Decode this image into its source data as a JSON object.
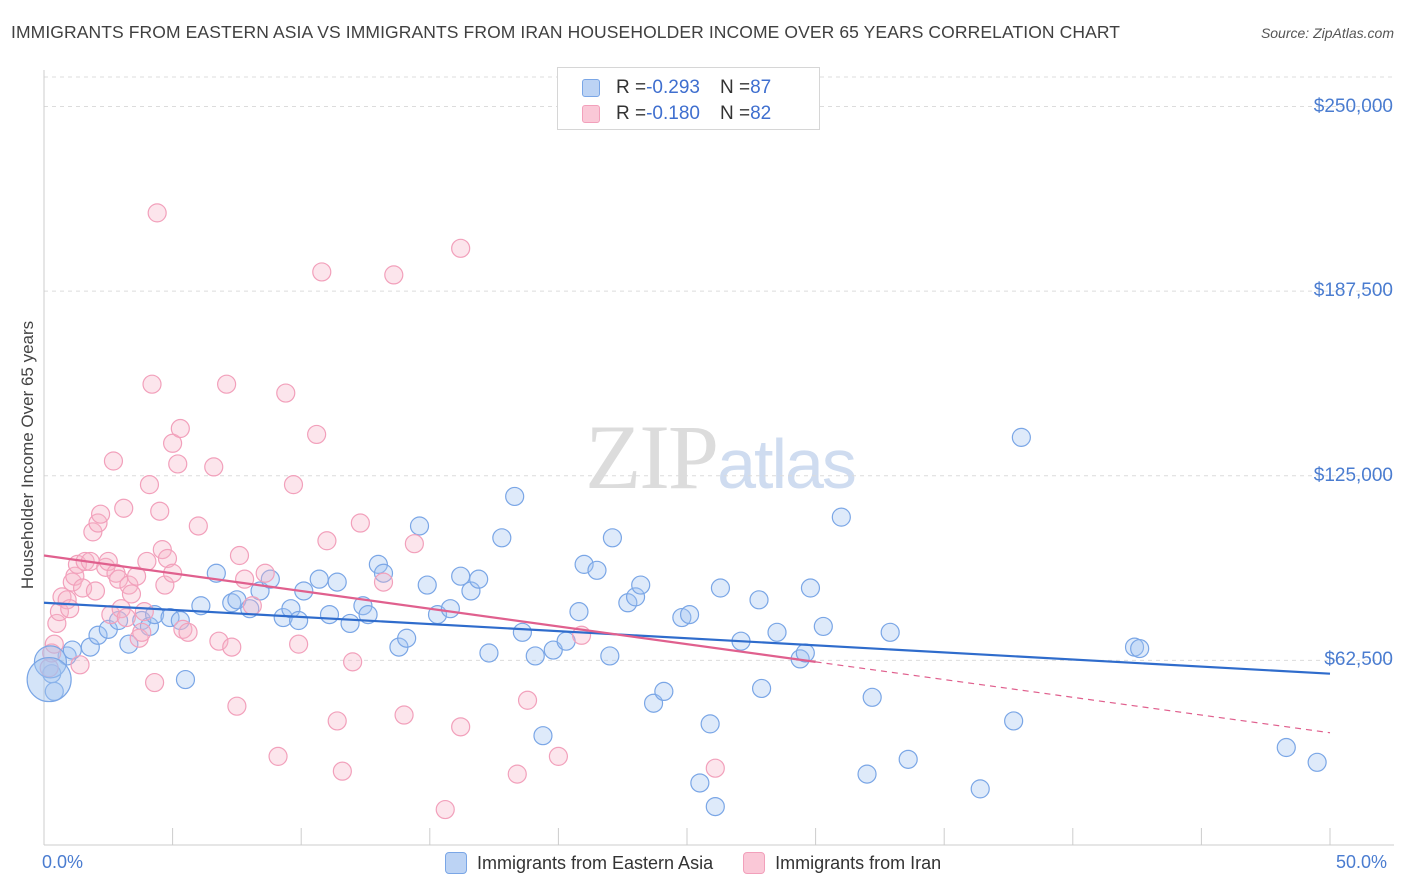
{
  "chart_data": {
    "type": "scatter",
    "title": "IMMIGRANTS FROM EASTERN ASIA VS IMMIGRANTS FROM IRAN HOUSEHOLDER INCOME OVER 65 YEARS CORRELATION CHART",
    "source": "Source: ZipAtlas.com",
    "xlabel": "",
    "ylabel": "Householder Income Over 65 years",
    "xlim": [
      0,
      50
    ],
    "ylim": [
      0,
      250000
    ],
    "x_tick_labels": [
      "0.0%",
      "50.0%"
    ],
    "y_ticks": [
      62500,
      125000,
      187500,
      250000
    ],
    "y_tick_labels": [
      "$62,500",
      "$125,000",
      "$187,500",
      "$250,000"
    ],
    "grid": "horizontal dashed",
    "watermark": "ZIPatlas",
    "legend_position": "top-center",
    "series": [
      {
        "name": "Immigrants from Eastern Asia",
        "color": "#7aa6e6",
        "line_color": "#2f6ccc",
        "R": "-0.293",
        "N": "87",
        "trend": {
          "x": [
            0,
            50
          ],
          "y": [
            82000,
            58000
          ],
          "solid_until": 50
        },
        "points": [
          [
            0.3,
            58000
          ],
          [
            0.4,
            52000
          ],
          [
            0.9,
            64000
          ],
          [
            1.1,
            66000
          ],
          [
            1.8,
            67000
          ],
          [
            2.1,
            71000
          ],
          [
            2.5,
            73000
          ],
          [
            2.9,
            76000
          ],
          [
            3.3,
            68000
          ],
          [
            3.8,
            76000
          ],
          [
            4.1,
            74000
          ],
          [
            4.3,
            78000
          ],
          [
            4.9,
            77000
          ],
          [
            5.3,
            76000
          ],
          [
            5.5,
            56000
          ],
          [
            6.1,
            81000
          ],
          [
            6.7,
            92000
          ],
          [
            7.3,
            82000
          ],
          [
            7.5,
            83000
          ],
          [
            8.0,
            80000
          ],
          [
            8.4,
            86000
          ],
          [
            8.8,
            90000
          ],
          [
            9.3,
            77000
          ],
          [
            9.6,
            80000
          ],
          [
            9.9,
            76000
          ],
          [
            10.1,
            86000
          ],
          [
            10.7,
            90000
          ],
          [
            11.1,
            78000
          ],
          [
            11.4,
            89000
          ],
          [
            11.9,
            75000
          ],
          [
            12.4,
            81000
          ],
          [
            12.6,
            78000
          ],
          [
            13.0,
            95000
          ],
          [
            13.2,
            92000
          ],
          [
            13.8,
            67000
          ],
          [
            14.1,
            70000
          ],
          [
            14.6,
            108000
          ],
          [
            14.9,
            88000
          ],
          [
            15.3,
            78000
          ],
          [
            15.8,
            80000
          ],
          [
            16.2,
            91000
          ],
          [
            16.6,
            86000
          ],
          [
            16.9,
            90000
          ],
          [
            17.3,
            65000
          ],
          [
            17.8,
            104000
          ],
          [
            18.3,
            118000
          ],
          [
            18.6,
            72000
          ],
          [
            19.1,
            64000
          ],
          [
            19.4,
            37000
          ],
          [
            19.8,
            66000
          ],
          [
            20.3,
            69000
          ],
          [
            20.8,
            79000
          ],
          [
            21.0,
            95000
          ],
          [
            21.5,
            93000
          ],
          [
            22.0,
            64000
          ],
          [
            22.1,
            104000
          ],
          [
            22.7,
            82000
          ],
          [
            23.0,
            84000
          ],
          [
            23.2,
            88000
          ],
          [
            23.7,
            48000
          ],
          [
            24.1,
            52000
          ],
          [
            24.8,
            77000
          ],
          [
            25.1,
            78000
          ],
          [
            25.5,
            21000
          ],
          [
            25.9,
            41000
          ],
          [
            26.1,
            13000
          ],
          [
            26.3,
            87000
          ],
          [
            27.1,
            69000
          ],
          [
            27.8,
            83000
          ],
          [
            27.9,
            53000
          ],
          [
            28.5,
            72000
          ],
          [
            29.4,
            63000
          ],
          [
            29.6,
            65000
          ],
          [
            29.8,
            87000
          ],
          [
            30.3,
            74000
          ],
          [
            31.0,
            111000
          ],
          [
            32.0,
            24000
          ],
          [
            32.2,
            50000
          ],
          [
            32.9,
            72000
          ],
          [
            33.6,
            29000
          ],
          [
            36.4,
            19000
          ],
          [
            37.7,
            42000
          ],
          [
            38.0,
            138000
          ],
          [
            42.4,
            67000
          ],
          [
            48.3,
            33000
          ],
          [
            49.5,
            28000
          ],
          [
            42.6,
            66500
          ]
        ],
        "point_sizes_note": "large bubbles at x≈0.2-0.3"
      },
      {
        "name": "Immigrants from Iran",
        "color": "#f2a0bb",
        "line_color": "#e0608e",
        "R": "-0.180",
        "N": "82",
        "trend": {
          "x": [
            0,
            50
          ],
          "y": [
            98000,
            38000
          ],
          "solid_until": 30
        },
        "points": [
          [
            0.2,
            60000
          ],
          [
            0.3,
            65000
          ],
          [
            0.4,
            68000
          ],
          [
            0.5,
            75000
          ],
          [
            0.6,
            79000
          ],
          [
            0.7,
            84000
          ],
          [
            0.9,
            83000
          ],
          [
            1.0,
            80000
          ],
          [
            1.1,
            89000
          ],
          [
            1.2,
            91000
          ],
          [
            1.3,
            95000
          ],
          [
            1.4,
            61000
          ],
          [
            1.5,
            87000
          ],
          [
            1.6,
            96000
          ],
          [
            1.8,
            96000
          ],
          [
            1.9,
            106000
          ],
          [
            2.0,
            86000
          ],
          [
            2.1,
            109000
          ],
          [
            2.2,
            112000
          ],
          [
            2.4,
            94000
          ],
          [
            2.5,
            96000
          ],
          [
            2.6,
            78000
          ],
          [
            2.7,
            130000
          ],
          [
            2.8,
            92000
          ],
          [
            2.9,
            90000
          ],
          [
            3.0,
            80000
          ],
          [
            3.1,
            114000
          ],
          [
            3.2,
            77000
          ],
          [
            3.3,
            88000
          ],
          [
            3.4,
            85000
          ],
          [
            3.6,
            91000
          ],
          [
            3.7,
            70000
          ],
          [
            3.8,
            72000
          ],
          [
            3.9,
            79000
          ],
          [
            4.0,
            96000
          ],
          [
            4.1,
            122000
          ],
          [
            4.2,
            156000
          ],
          [
            4.3,
            55000
          ],
          [
            4.4,
            214000
          ],
          [
            4.5,
            113000
          ],
          [
            4.6,
            100000
          ],
          [
            4.7,
            88000
          ],
          [
            4.8,
            97000
          ],
          [
            5.0,
            92000
          ],
          [
            5.0,
            136000
          ],
          [
            5.2,
            129000
          ],
          [
            5.3,
            141000
          ],
          [
            5.4,
            73000
          ],
          [
            5.6,
            72000
          ],
          [
            6.0,
            108000
          ],
          [
            6.6,
            128000
          ],
          [
            6.8,
            69000
          ],
          [
            7.1,
            156000
          ],
          [
            7.3,
            67000
          ],
          [
            7.5,
            47000
          ],
          [
            7.6,
            98000
          ],
          [
            7.8,
            90000
          ],
          [
            8.1,
            81000
          ],
          [
            8.6,
            92000
          ],
          [
            9.1,
            30000
          ],
          [
            9.4,
            153000
          ],
          [
            9.9,
            68000
          ],
          [
            9.7,
            122000
          ],
          [
            10.6,
            139000
          ],
          [
            10.8,
            194000
          ],
          [
            11.0,
            103000
          ],
          [
            11.4,
            42000
          ],
          [
            11.6,
            25000
          ],
          [
            12.0,
            62000
          ],
          [
            12.3,
            109000
          ],
          [
            13.2,
            89000
          ],
          [
            13.6,
            193000
          ],
          [
            14.0,
            44000
          ],
          [
            14.4,
            102000
          ],
          [
            15.6,
            12000
          ],
          [
            16.2,
            202000
          ],
          [
            16.2,
            40000
          ],
          [
            18.4,
            24000
          ],
          [
            18.8,
            49000
          ],
          [
            20.0,
            30000
          ],
          [
            20.9,
            71000
          ],
          [
            26.1,
            26000
          ]
        ]
      }
    ]
  },
  "legend_top": {
    "rows": [
      {
        "r_label": "R = ",
        "r_value": "-0.293",
        "n_label": "N = ",
        "n_value": "87"
      },
      {
        "r_label": "R = ",
        "r_value": "-0.180",
        "n_label": "N = ",
        "n_value": "82"
      }
    ]
  },
  "legend_bottom": {
    "items": [
      "Immigrants from Eastern Asia",
      "Immigrants from Iran"
    ]
  }
}
